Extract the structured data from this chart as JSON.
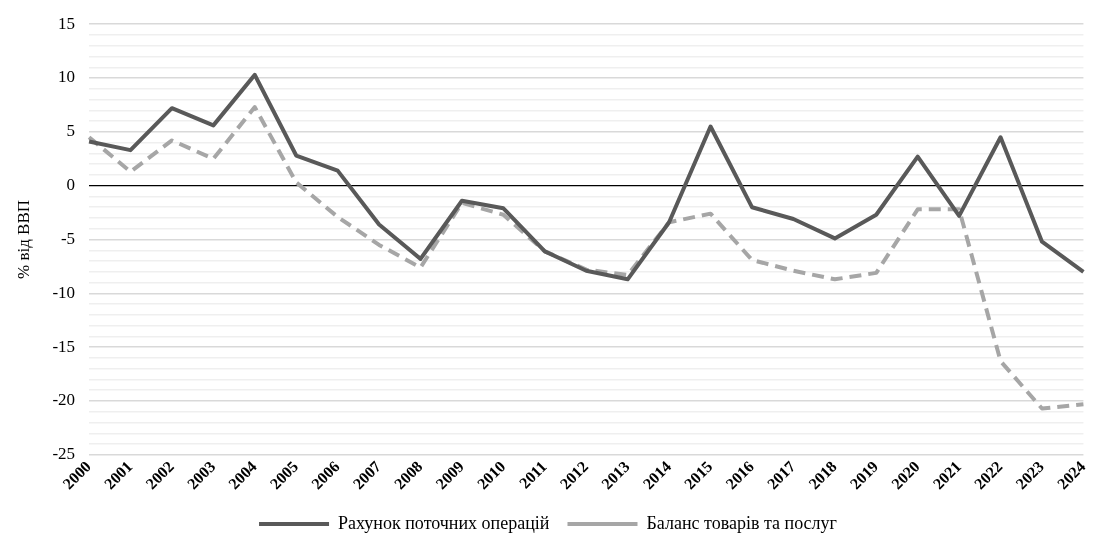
{
  "chart_data": {
    "type": "line",
    "ylabel": "% від ВВП",
    "categories": [
      "2000",
      "2001",
      "2002",
      "2003",
      "2004",
      "2005",
      "2006",
      "2007",
      "2008",
      "2009",
      "2010",
      "2011",
      "2012",
      "2013",
      "2014",
      "2015",
      "2016",
      "2017",
      "2018",
      "2019",
      "2020",
      "2021",
      "2022",
      "2023",
      "2024"
    ],
    "series": [
      {
        "name": "Рахунок поточних операцій",
        "color": "#595959",
        "line_style": "solid",
        "values": [
          4.1,
          3.3,
          7.2,
          5.6,
          10.3,
          2.8,
          1.4,
          -3.6,
          -6.8,
          -1.4,
          -2.1,
          -6.1,
          -7.9,
          -8.7,
          -3.4,
          5.5,
          -2.0,
          -3.1,
          -4.9,
          -2.7,
          2.7,
          -2.8,
          4.5,
          -5.2,
          -8.0
        ]
      },
      {
        "name": "Баланс товарів та послуг",
        "color": "#a6a6a6",
        "line_style": "dashed",
        "values": [
          4.5,
          1.3,
          4.2,
          2.5,
          7.3,
          0.3,
          -2.9,
          -5.5,
          -7.6,
          -1.6,
          -2.7,
          -6.1,
          -7.8,
          -8.3,
          -3.4,
          -2.6,
          -6.9,
          -7.9,
          -8.7,
          -8.1,
          -2.2,
          -2.2,
          -16.3,
          -20.7,
          -20.3
        ]
      }
    ],
    "ylim": [
      -25,
      15
    ],
    "yticks": [
      -25,
      {
        "value": -24,
        "label": null
      },
      {
        "value": -23,
        "label": null
      },
      {
        "value": -22,
        "label": null
      },
      {
        "value": -21,
        "label": null
      },
      -20,
      {
        "value": -19,
        "label": null
      },
      {
        "value": -18,
        "label": null
      },
      {
        "value": -17,
        "label": null
      },
      {
        "value": -16,
        "label": null
      },
      -15,
      {
        "value": -14,
        "label": null
      },
      {
        "value": -13,
        "label": null
      },
      {
        "value": -12,
        "label": null
      },
      {
        "value": -11,
        "label": null
      },
      -10,
      {
        "value": -9,
        "label": null
      },
      {
        "value": -8,
        "label": null
      },
      {
        "value": -7,
        "label": null
      },
      {
        "value": -6,
        "label": null
      },
      -5,
      {
        "value": -4,
        "label": null
      },
      {
        "value": -3,
        "label": null
      },
      {
        "value": -2,
        "label": null
      },
      {
        "value": -1,
        "label": null
      },
      0,
      {
        "value": 1,
        "label": null
      },
      {
        "value": 2,
        "label": null
      },
      {
        "value": 3,
        "label": null
      },
      {
        "value": 4,
        "label": null
      },
      5,
      {
        "value": 6,
        "label": null
      },
      {
        "value": 7,
        "label": null
      },
      {
        "value": 8,
        "label": null
      },
      {
        "value": 9,
        "label": null
      },
      10,
      {
        "value": 11,
        "label": null
      },
      {
        "value": 12,
        "label": null
      },
      {
        "value": 13,
        "label": null
      },
      {
        "value": 14,
        "label": null
      },
      15
    ],
    "grid": "y",
    "legend": "bottom",
    "marker": "none"
  }
}
